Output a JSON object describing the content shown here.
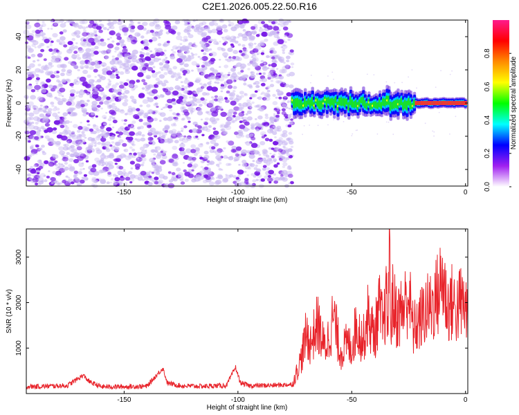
{
  "title": "C2E1.2026.005.22.50.R16",
  "colors": {
    "line": "#e8232a",
    "scatter_low": "#c9b8f2",
    "scatter_high": "#7a1de6",
    "colorbar": [
      "#ffffff",
      "#a020f0",
      "#0000ff",
      "#00ffff",
      "#00ff00",
      "#ffff00",
      "#ff8c00",
      "#ff0000",
      "#ff1a8c"
    ]
  },
  "chart_data": [
    {
      "type": "heatmap",
      "xlabel": "Height of straight line (km)",
      "ylabel": "Frequency (Hz)",
      "xlim": [
        -193,
        1
      ],
      "ylim": [
        -50,
        50
      ],
      "xticks": [
        -150,
        -100,
        -50,
        0
      ],
      "xtick_labels": [
        "-150",
        "-100",
        "-50",
        "0"
      ],
      "yticks": [
        -40,
        -20,
        0,
        20,
        40
      ],
      "ytick_labels": [
        "-40",
        "-20",
        "0",
        "20",
        "40"
      ],
      "noise_region_km": [
        -193,
        -76
      ],
      "signal_band_hz": [
        -5,
        5
      ],
      "colorbar": {
        "label": "Normalized spectral amplitude",
        "range": [
          0,
          1
        ],
        "ticks": [
          0.0,
          0.2,
          0.4,
          0.6,
          0.8
        ],
        "tick_labels": [
          "0.0",
          "0.2",
          "0.4",
          "0.6",
          "0.8"
        ]
      }
    },
    {
      "type": "line",
      "xlabel": "Height of straight line (km)",
      "ylabel": "SNR (10 * v/v)",
      "xlim": [
        -193,
        1
      ],
      "ylim": [
        0,
        3620
      ],
      "xticks": [
        -150,
        -100,
        -50,
        0
      ],
      "xtick_labels": [
        "-150",
        "-100",
        "-50",
        "0"
      ],
      "yticks": [
        1000,
        2000,
        3000
      ],
      "ytick_labels": [
        "1000",
        "2000",
        "3000"
      ],
      "series": [
        {
          "x": [
            -193,
            -185,
            -175,
            -168,
            -165,
            -160,
            -150,
            -140,
            -133,
            -131,
            -125,
            -115,
            -105,
            -101,
            -99,
            -95,
            -85,
            -76,
            -72,
            -70,
            -68,
            -65,
            -62,
            -60,
            -58,
            -55,
            -52,
            -50,
            -48,
            -45,
            -43,
            -40,
            -38,
            -36,
            -35,
            -34,
            -33.5,
            -33,
            -32,
            -30,
            -27,
            -25,
            -23,
            -20,
            -18,
            -15,
            -12,
            -10,
            -8,
            -6,
            -4,
            -2,
            0,
            1
          ],
          "y": [
            150,
            160,
            175,
            400,
            250,
            150,
            150,
            160,
            560,
            230,
            170,
            160,
            180,
            580,
            240,
            170,
            180,
            200,
            800,
            1300,
            1100,
            1550,
            1000,
            1250,
            1700,
            900,
            1100,
            1000,
            1500,
            1150,
            1700,
            1250,
            1900,
            1400,
            2100,
            1500,
            3620,
            1600,
            2000,
            1700,
            1900,
            2200,
            1400,
            1600,
            1800,
            1900,
            2200,
            2550,
            1900,
            2000,
            1850,
            2000,
            1900,
            1800
          ]
        }
      ]
    }
  ]
}
